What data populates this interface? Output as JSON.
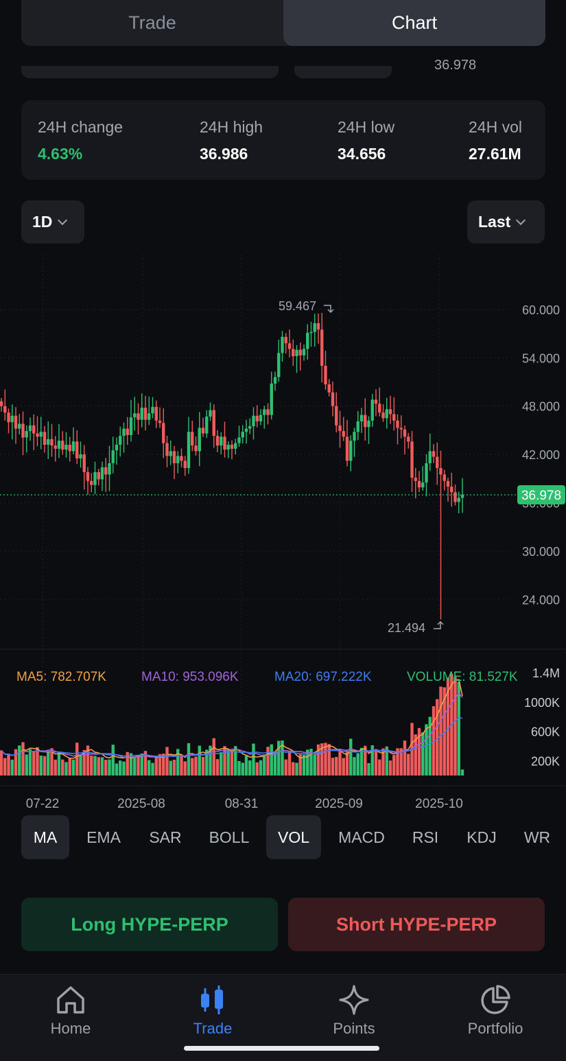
{
  "segmented": {
    "tabs": [
      {
        "label": "Trade",
        "active": false
      },
      {
        "label": "Chart",
        "active": true
      }
    ]
  },
  "peek_value": "36.978",
  "stats": [
    {
      "label": "24H change",
      "value": "4.63%",
      "color": "#2fbf71"
    },
    {
      "label": "24H high",
      "value": "36.986"
    },
    {
      "label": "24H low",
      "value": "34.656"
    },
    {
      "label": "24H vol",
      "value": "27.61M"
    }
  ],
  "interval": {
    "value": "1D"
  },
  "price_type": {
    "value": "Last"
  },
  "chart_data": {
    "type": "candlestick",
    "colors": {
      "up": "#2fbf71",
      "down": "#ef5c5c",
      "ma5": "#f0a245",
      "ma10": "#a064d8",
      "ma20": "#3f7df0",
      "last_line": "#2fbf71"
    },
    "price_axis": {
      "ticks": [
        "60.000",
        "54.000",
        "48.000",
        "42.000",
        "36.000",
        "30.000",
        "24.000"
      ],
      "range": [
        17.8,
        66.9
      ]
    },
    "last_price": "36.978",
    "annotations": {
      "high": "59.467",
      "low": "21.494"
    },
    "x_ticks": [
      "07-22",
      "2025-08",
      "08-31",
      "2025-09",
      "2025-10"
    ],
    "closes": [
      48.0,
      47.2,
      46.0,
      46.8,
      45.2,
      45.8,
      44.1,
      44.9,
      45.6,
      44.6,
      44.2,
      44.8,
      43.2,
      43.9,
      43.1,
      42.7,
      43.7,
      42.6,
      43.2,
      42.4,
      43.6,
      41.5,
      42.0,
      39.8,
      38.7,
      38.2,
      39.8,
      38.9,
      40.4,
      39.5,
      40.9,
      42.5,
      43.2,
      44.3,
      45.2,
      44.4,
      46.6,
      47.1,
      46.3,
      47.8,
      46.3,
      47.1,
      47.9,
      46.2,
      45.9,
      43.4,
      41.8,
      42.4,
      40.9,
      41.8,
      41.2,
      40.3,
      44.8,
      43.1,
      42.4,
      45.3,
      44.6,
      46.7,
      47.5,
      44.3,
      43.1,
      44.2,
      42.6,
      43.2,
      42.7,
      43.4,
      44.1,
      44.8,
      45.2,
      45.5,
      46.8,
      46.1,
      46.9,
      47.6,
      46.9,
      50.8,
      51.6,
      54.6,
      56.6,
      55.8,
      55.1,
      54.2,
      55.0,
      54.3,
      55.1,
      57.1,
      57.2,
      58.3,
      57.5,
      53.0,
      50.7,
      49.7,
      48.0,
      45.6,
      44.9,
      44.2,
      41.2,
      43.7,
      44.8,
      46.1,
      46.9,
      45.4,
      46.2,
      48.8,
      48.3,
      47.2,
      46.5,
      47.6,
      47.0,
      46.2,
      45.3,
      45.1,
      44.2,
      43.6,
      39.1,
      38.7,
      37.9,
      38.5,
      40.9,
      42.4,
      41.7,
      40.3,
      39.5,
      38.7,
      38.0,
      37.3,
      36.1,
      36.6,
      36.978
    ],
    "volume": {
      "axis_ticks": [
        "1.4M",
        "1000K",
        "600K",
        "200K"
      ],
      "legend": [
        {
          "label": "MA5: 782.707K",
          "color": "#f0a245"
        },
        {
          "label": "MA10: 953.096K",
          "color": "#a064d8"
        },
        {
          "label": "MA20: 697.222K",
          "color": "#3f7df0"
        },
        {
          "label": "VOLUME: 81.527K",
          "color": "#2fbf71"
        }
      ]
    }
  },
  "indicators": [
    {
      "label": "MA",
      "active": true
    },
    {
      "label": "EMA",
      "active": false
    },
    {
      "label": "SAR",
      "active": false
    },
    {
      "label": "BOLL",
      "active": false
    },
    {
      "label": "VOL",
      "active": true
    },
    {
      "label": "MACD",
      "active": false
    },
    {
      "label": "RSI",
      "active": false
    },
    {
      "label": "KDJ",
      "active": false
    },
    {
      "label": "WR",
      "active": false
    }
  ],
  "actions": {
    "long": "Long HYPE-PERP",
    "short": "Short HYPE-PERP"
  },
  "tabbar": [
    {
      "label": "Home",
      "icon": "home-icon",
      "active": false
    },
    {
      "label": "Trade",
      "icon": "candles-icon",
      "active": true
    },
    {
      "label": "Points",
      "icon": "sparkle-icon",
      "active": false
    },
    {
      "label": "Portfolio",
      "icon": "pie-chart-icon",
      "active": false
    }
  ]
}
